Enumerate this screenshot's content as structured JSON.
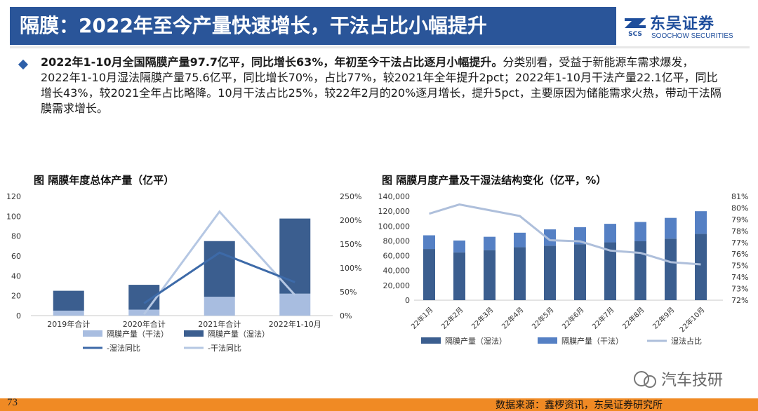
{
  "header": {
    "title": "隔膜：2022年至今产量快速增长，干法占比小幅提升",
    "logo_name": "东吴证券",
    "logo_en": "SOOCHOW SECURITIES",
    "logo_mark_text": "SCS"
  },
  "summary": {
    "bold": "2022年1-10月全国隔膜产量97.7亿平，同比增长63%，年初至今干法占比逐月小幅提升。",
    "body": "分类别看，受益于新能源车需求爆发，2022年1-10月湿法隔膜产量75.6亿平，同比增长70%，占比77%，较2021年全年提升2pct；2022年1-10月干法产量22.1亿平，同比增长43%，较2021全年占比略降。10月干法占比25%，较22年2月的20%逐月增长，提升5pct，主要原因为储能需求火热，带动干法隔膜需求增长。"
  },
  "footer": {
    "page_number": "73",
    "source": "数据来源：鑫椤资讯，东吴证券研究所",
    "watermark": "汽车技研"
  },
  "colors": {
    "title_bg": "#2a5599",
    "dark_bar": "#3b5e8f",
    "light_bar": "#a8bde0",
    "wet_line": "#3d6aa8",
    "dry_line": "#b5c7e3",
    "mid_bar": "#5580c4",
    "share_line": "#aebfdb",
    "bottom_bar": "#f08a24"
  },
  "chart_data": [
    {
      "type": "bar",
      "title": "图 隔膜年度总体产量（亿平）",
      "categories": [
        "2019年合计",
        "2020年合计",
        "2021年合计",
        "2022年1-10月"
      ],
      "stacked": true,
      "series": [
        {
          "name": "隔膜产量（干法）",
          "values": [
            5,
            6,
            19,
            22.1
          ],
          "axis": "left"
        },
        {
          "name": "隔膜产量（湿法）",
          "values": [
            20,
            25,
            56,
            75.6
          ],
          "axis": "left"
        },
        {
          "name": "-湿法同比",
          "type": "line",
          "values": [
            null,
            26,
            132,
            70
          ],
          "axis": "right"
        },
        {
          "name": "-干法同比",
          "type": "line",
          "values": [
            null,
            3,
            218,
            43
          ],
          "axis": "right"
        }
      ],
      "ylim": [
        0,
        120
      ],
      "yticks": [
        0,
        20,
        40,
        60,
        80,
        100,
        120
      ],
      "y2lim": [
        0,
        250
      ],
      "y2ticks": [
        "0%",
        "50%",
        "100%",
        "150%",
        "200%",
        "250%"
      ],
      "legend": "bottom"
    },
    {
      "type": "bar",
      "title": "图 隔膜月度产量及干湿法结构变化（亿平，%）",
      "categories": [
        "22年1月",
        "22年2月",
        "22年3月",
        "22年4月",
        "22年5月",
        "22年6月",
        "22年7月",
        "22年8月",
        "22年9月",
        "22年10月"
      ],
      "stacked": true,
      "series": [
        {
          "name": "隔膜产量（湿法）",
          "values": [
            69000,
            64500,
            67500,
            71500,
            73500,
            75500,
            78000,
            79500,
            83000,
            89500
          ],
          "axis": "left"
        },
        {
          "name": "隔膜产量（干法）",
          "values": [
            18500,
            16000,
            18000,
            19500,
            22000,
            23000,
            25000,
            26000,
            28000,
            30500
          ],
          "axis": "left"
        },
        {
          "name": "湿法占比",
          "type": "line",
          "values": [
            79.5,
            80.3,
            79.8,
            79.3,
            77.2,
            77.1,
            76.3,
            76.1,
            75.3,
            75.1
          ],
          "axis": "right"
        }
      ],
      "ylim": [
        0,
        140000
      ],
      "yticks": [
        "0",
        "20,000",
        "40,000",
        "60,000",
        "80,000",
        "100,000",
        "120,000",
        "140,000"
      ],
      "y2lim": [
        72,
        81
      ],
      "y2ticks": [
        "72%",
        "73%",
        "74%",
        "75%",
        "76%",
        "77%",
        "78%",
        "79%",
        "80%",
        "81%"
      ],
      "legend": "bottom"
    }
  ]
}
